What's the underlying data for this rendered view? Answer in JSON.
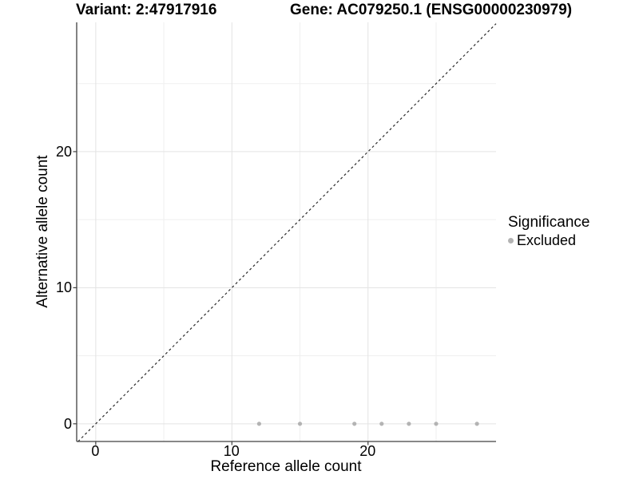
{
  "header": {
    "variant_title": "Variant: 2:47917916",
    "gene_title": "Gene: AC079250.1 (ENSG00000230979)"
  },
  "chart_data": {
    "type": "scatter",
    "xlabel": "Reference allele count",
    "ylabel": "Alternative allele count",
    "xlim": [
      -1.4,
      29.4
    ],
    "ylim": [
      -1.3,
      29.5
    ],
    "x_major_ticks": [
      0,
      10,
      20
    ],
    "x_minor_ticks": [
      5,
      15,
      25
    ],
    "y_major_ticks": [
      0,
      10,
      20
    ],
    "y_minor_ticks": [
      5,
      15,
      25
    ],
    "grid": true,
    "identity_line": {
      "style": "dashed",
      "from": [
        -1.3,
        -1.3
      ],
      "to": [
        29.4,
        29.4
      ]
    },
    "series": [
      {
        "name": "Excluded",
        "points": [
          [
            12,
            0
          ],
          [
            15,
            0
          ],
          [
            19,
            0
          ],
          [
            21,
            0
          ],
          [
            23,
            0
          ],
          [
            25,
            0
          ],
          [
            28,
            0
          ]
        ]
      }
    ],
    "legend": {
      "title": "Significance",
      "position": "right",
      "entries": [
        {
          "label": "Excluded",
          "color": "#b3b3b3"
        }
      ]
    }
  },
  "colors": {
    "background": "#ffffff",
    "point": "#b3b3b3",
    "grid_major": "#e3e3e3",
    "grid_minor": "#efefef",
    "axis": "#404040",
    "dash_line": "#2b2b2b",
    "text": "#000000"
  }
}
